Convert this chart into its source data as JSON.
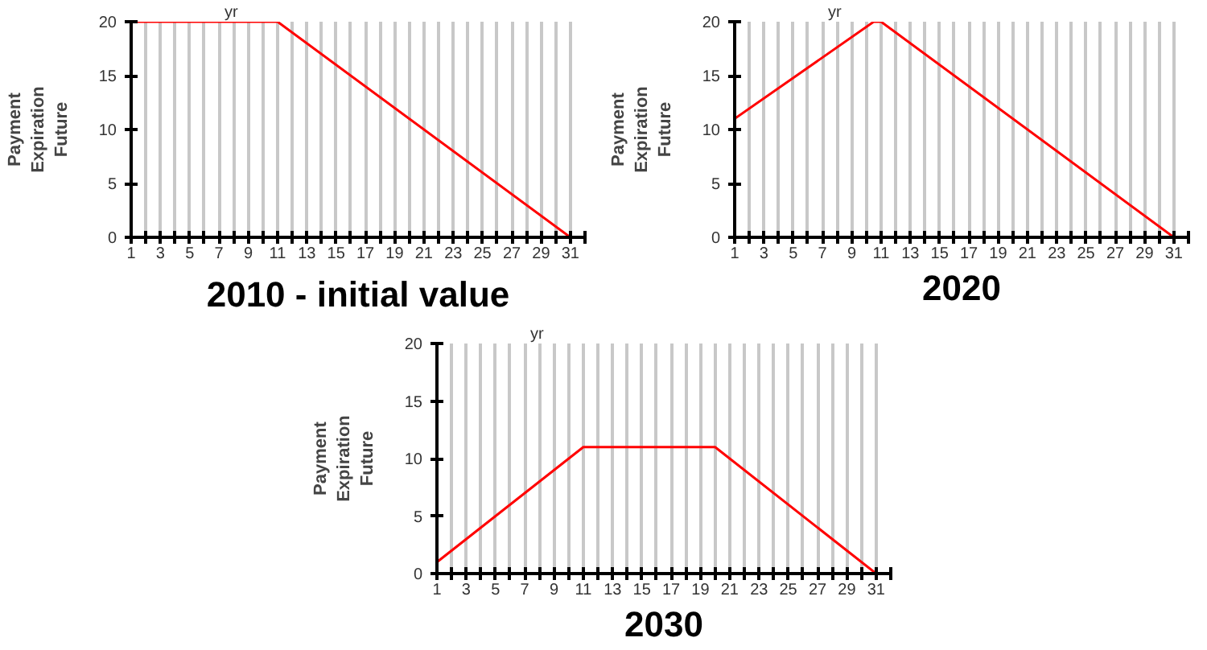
{
  "chart_data": [
    {
      "type": "line",
      "title": "2010 - initial value",
      "ylabel": "Payment Expiration Future",
      "annotations": [
        "yr"
      ],
      "x": [
        1,
        11,
        31,
        32
      ],
      "series": [
        {
          "color": "#ff0000",
          "values": [
            20,
            20,
            0,
            0
          ]
        }
      ],
      "xlim": [
        1,
        32
      ],
      "ylim": [
        0,
        20
      ],
      "yticks": [
        0,
        5,
        10,
        15,
        20
      ],
      "xticks": [
        1,
        {
          "value": 2,
          "label": null
        },
        3,
        {
          "value": 4,
          "label": null
        },
        5,
        {
          "value": 6,
          "label": null
        },
        7,
        {
          "value": 8,
          "label": null
        },
        9,
        {
          "value": 10,
          "label": null
        },
        11,
        {
          "value": 12,
          "label": null
        },
        13,
        {
          "value": 14,
          "label": null
        },
        15,
        {
          "value": 16,
          "label": null
        },
        17,
        {
          "value": 18,
          "label": null
        },
        19,
        {
          "value": 20,
          "label": null
        },
        21,
        {
          "value": 22,
          "label": null
        },
        23,
        {
          "value": 24,
          "label": null
        },
        25,
        {
          "value": 26,
          "label": null
        },
        27,
        {
          "value": 28,
          "label": null
        },
        29,
        {
          "value": 30,
          "label": null
        },
        31,
        {
          "value": 32,
          "label": null
        }
      ],
      "grid": "x"
    },
    {
      "type": "line",
      "title": "2020",
      "ylabel": "Payment Expiration Future",
      "annotations": [
        "yr"
      ],
      "x": [
        1,
        10.5,
        11,
        31,
        32
      ],
      "series": [
        {
          "color": "#ff0000",
          "values": [
            11,
            20,
            20,
            0,
            0
          ]
        }
      ],
      "xlim": [
        1,
        32
      ],
      "ylim": [
        0,
        20
      ],
      "yticks": [
        0,
        5,
        10,
        15,
        20
      ],
      "xticks": [
        1,
        {
          "value": 2,
          "label": null
        },
        3,
        {
          "value": 4,
          "label": null
        },
        5,
        {
          "value": 6,
          "label": null
        },
        7,
        {
          "value": 8,
          "label": null
        },
        9,
        {
          "value": 10,
          "label": null
        },
        11,
        {
          "value": 12,
          "label": null
        },
        13,
        {
          "value": 14,
          "label": null
        },
        15,
        {
          "value": 16,
          "label": null
        },
        17,
        {
          "value": 18,
          "label": null
        },
        19,
        {
          "value": 20,
          "label": null
        },
        21,
        {
          "value": 22,
          "label": null
        },
        23,
        {
          "value": 24,
          "label": null
        },
        25,
        {
          "value": 26,
          "label": null
        },
        27,
        {
          "value": 28,
          "label": null
        },
        29,
        {
          "value": 30,
          "label": null
        },
        31,
        {
          "value": 32,
          "label": null
        }
      ],
      "grid": "x"
    },
    {
      "type": "line",
      "title": "2030",
      "ylabel": "Payment Expiration Future",
      "annotations": [
        "yr"
      ],
      "x": [
        1,
        11,
        20,
        31,
        32
      ],
      "series": [
        {
          "color": "#ff0000",
          "values": [
            1,
            11,
            11,
            0,
            0
          ]
        }
      ],
      "xlim": [
        1,
        32
      ],
      "ylim": [
        0,
        20
      ],
      "yticks": [
        0,
        5,
        10,
        15,
        20
      ],
      "xticks": [
        1,
        {
          "value": 2,
          "label": null
        },
        3,
        {
          "value": 4,
          "label": null
        },
        5,
        {
          "value": 6,
          "label": null
        },
        7,
        {
          "value": 8,
          "label": null
        },
        9,
        {
          "value": 10,
          "label": null
        },
        11,
        {
          "value": 12,
          "label": null
        },
        13,
        {
          "value": 14,
          "label": null
        },
        15,
        {
          "value": 16,
          "label": null
        },
        17,
        {
          "value": 18,
          "label": null
        },
        19,
        {
          "value": 20,
          "label": null
        },
        21,
        {
          "value": 22,
          "label": null
        },
        23,
        {
          "value": 24,
          "label": null
        },
        25,
        {
          "value": 26,
          "label": null
        },
        27,
        {
          "value": 28,
          "label": null
        },
        29,
        {
          "value": 30,
          "label": null
        },
        31,
        {
          "value": 32,
          "label": null
        }
      ],
      "grid": "x"
    }
  ]
}
